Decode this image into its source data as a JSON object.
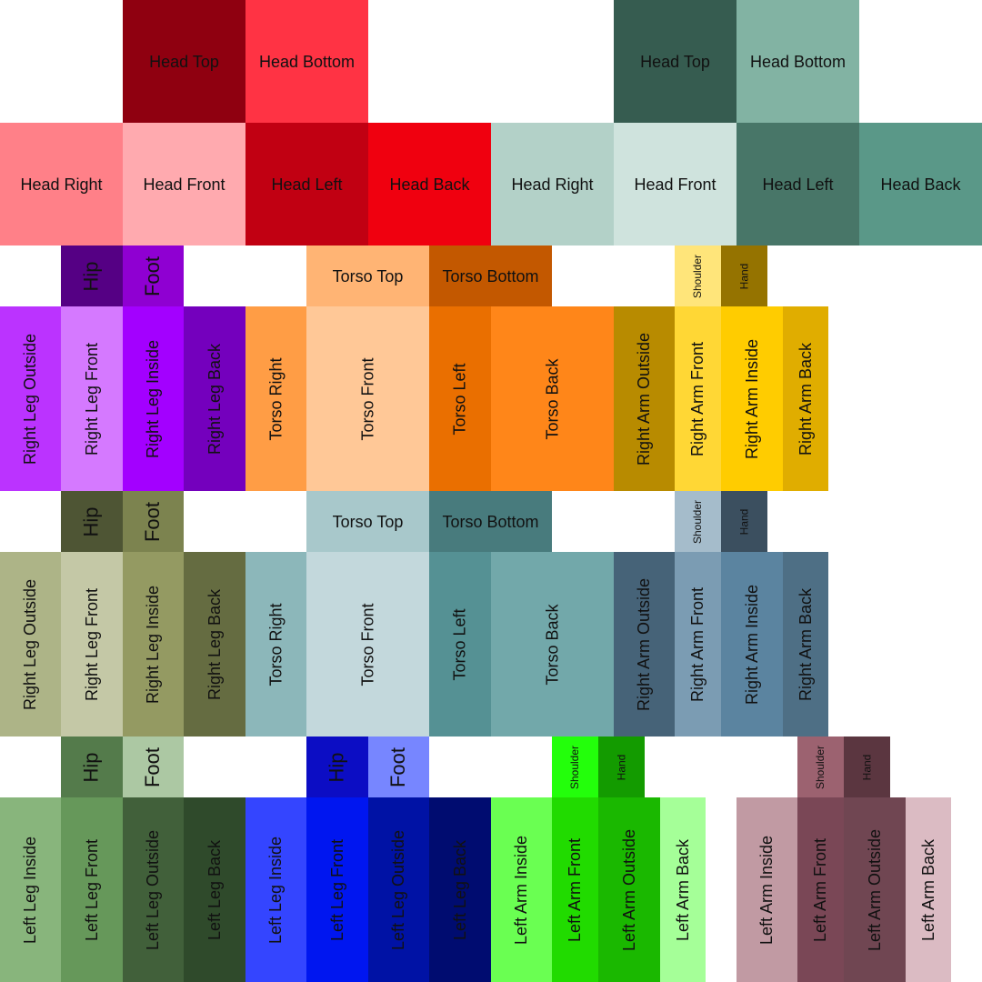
{
  "regions": [
    {
      "text": "Head Top",
      "color": "#8f0010"
    },
    {
      "text": "Head Bottom",
      "color": "#ff3344"
    },
    {
      "text": "Head Top",
      "color": "#365c50"
    },
    {
      "text": "Head Bottom",
      "color": "#82b3a3"
    },
    {
      "text": "Head Right",
      "color": "#ff8088"
    },
    {
      "text": "Head Front",
      "color": "#ffaaaf"
    },
    {
      "text": "Head Left",
      "color": "#c10012"
    },
    {
      "text": "Head Back",
      "color": "#f0000f"
    },
    {
      "text": "Head Right",
      "color": "#b3d1c8"
    },
    {
      "text": "Head Front",
      "color": "#cfe3dd"
    },
    {
      "text": "Head Left",
      "color": "#487668"
    },
    {
      "text": "Head Back",
      "color": "#5a9888"
    },
    {
      "text": "Hip",
      "color": "#550084"
    },
    {
      "text": "Foot",
      "color": "#8f00d2"
    },
    {
      "text": "Torso Top",
      "color": "#ffb474"
    },
    {
      "text": "Torso Bottom",
      "color": "#c35800"
    },
    {
      "text": "Shoulder",
      "color": "#ffe57a"
    },
    {
      "text": "Hand",
      "color": "#957300"
    },
    {
      "text": "Right Leg Outside",
      "color": "#bb33ff"
    },
    {
      "text": "Right Leg Front",
      "color": "#d579ff"
    },
    {
      "text": "Right Leg Inside",
      "color": "#a300ff"
    },
    {
      "text": "Right Leg Back",
      "color": "#7400bd"
    },
    {
      "text": "Torso Right",
      "color": "#ff9d45"
    },
    {
      "text": "Torso Front",
      "color": "#ffc897"
    },
    {
      "text": "Torso Left",
      "color": "#ea6f00"
    },
    {
      "text": "Torso Back",
      "color": "#ff8619"
    },
    {
      "text": "Right Arm Outside",
      "color": "#b88b00"
    },
    {
      "text": "Right Arm Front",
      "color": "#ffd735"
    },
    {
      "text": "Right Arm Inside",
      "color": "#ffcc00"
    },
    {
      "text": "Right Arm Back",
      "color": "#e0ad00"
    },
    {
      "text": "Hip",
      "color": "#4e5534"
    },
    {
      "text": "Foot",
      "color": "#7c834f"
    },
    {
      "text": "Torso Top",
      "color": "#a8c8cb"
    },
    {
      "text": "Torso Bottom",
      "color": "#487b7d"
    },
    {
      "text": "Shoulder",
      "color": "#a5bccb"
    },
    {
      "text": "Hand",
      "color": "#3b4f5f"
    },
    {
      "text": "Right Leg Outside",
      "color": "#adb487"
    },
    {
      "text": "Right Leg Front",
      "color": "#c4c8a6"
    },
    {
      "text": "Right Leg Inside",
      "color": "#949a62"
    },
    {
      "text": "Right Leg Back",
      "color": "#656c41"
    },
    {
      "text": "Torso Right",
      "color": "#8cb7ba"
    },
    {
      "text": "Torso Front",
      "color": "#c3d8dc"
    },
    {
      "text": "Torso Left",
      "color": "#559194"
    },
    {
      "text": "Torso Back",
      "color": "#72a8aa"
    },
    {
      "text": "Right Arm Outside",
      "color": "#466378"
    },
    {
      "text": "Right Arm Front",
      "color": "#7b9cb3"
    },
    {
      "text": "Right Arm Inside",
      "color": "#5b84a0"
    },
    {
      "text": "Right Arm Back",
      "color": "#4e6f85"
    },
    {
      "text": "Hip",
      "color": "#547b4b"
    },
    {
      "text": "Foot",
      "color": "#acc8a3"
    },
    {
      "text": "Hip",
      "color": "#0c0dc4"
    },
    {
      "text": "Foot",
      "color": "#7786ff"
    },
    {
      "text": "Shoulder",
      "color": "#23ff0b"
    },
    {
      "text": "Hand",
      "color": "#139b00"
    },
    {
      "text": "Shoulder",
      "color": "#9c6270"
    },
    {
      "text": "Hand",
      "color": "#5b3640"
    },
    {
      "text": "Left Leg Inside",
      "color": "#88b57c"
    },
    {
      "text": "Left Leg Front",
      "color": "#66985a"
    },
    {
      "text": "Left Leg Outside",
      "color": "#41603a"
    },
    {
      "text": "Left Leg Back",
      "color": "#2f4a2b"
    },
    {
      "text": "Left Leg Inside",
      "color": "#3445ff"
    },
    {
      "text": "Left Leg Front",
      "color": "#0016f0"
    },
    {
      "text": "Left Leg Outside",
      "color": "#0012a5"
    },
    {
      "text": "Left Leg Back",
      "color": "#000c70"
    },
    {
      "text": "Left Arm Inside",
      "color": "#6aff52"
    },
    {
      "text": "Left Arm Front",
      "color": "#21db00"
    },
    {
      "text": "Left Arm Outside",
      "color": "#1ab800"
    },
    {
      "text": "Left Arm Back",
      "color": "#a5ff98"
    },
    {
      "text": "Left Arm Inside",
      "color": "#c19aa3"
    },
    {
      "text": "Left Arm Front",
      "color": "#7a4756"
    },
    {
      "text": "Left Arm Outside",
      "color": "#704652"
    },
    {
      "text": "Left Arm Back",
      "color": "#dbbbc3"
    }
  ]
}
